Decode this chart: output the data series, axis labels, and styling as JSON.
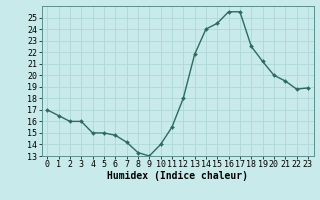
{
  "x": [
    0,
    1,
    2,
    3,
    4,
    5,
    6,
    7,
    8,
    9,
    10,
    11,
    12,
    13,
    14,
    15,
    16,
    17,
    18,
    19,
    20,
    21,
    22,
    23
  ],
  "y": [
    17.0,
    16.5,
    16.0,
    16.0,
    15.0,
    15.0,
    14.8,
    14.2,
    13.3,
    13.0,
    14.0,
    15.5,
    18.0,
    21.8,
    24.0,
    24.5,
    25.5,
    25.5,
    22.5,
    21.2,
    20.0,
    19.5,
    18.8,
    18.9
  ],
  "line_color": "#2d6b5e",
  "marker": "D",
  "marker_size": 2.0,
  "bg_color": "#c8eaea",
  "grid_color": "#b0d8d8",
  "xlabel": "Humidex (Indice chaleur)",
  "ylim": [
    13,
    26
  ],
  "xlim": [
    -0.5,
    23.5
  ],
  "yticks": [
    13,
    14,
    15,
    16,
    17,
    18,
    19,
    20,
    21,
    22,
    23,
    24,
    25
  ],
  "xticks": [
    0,
    1,
    2,
    3,
    4,
    5,
    6,
    7,
    8,
    9,
    10,
    11,
    12,
    13,
    14,
    15,
    16,
    17,
    18,
    19,
    20,
    21,
    22,
    23
  ],
  "xlabel_fontsize": 7,
  "tick_fontsize": 6,
  "linewidth": 1.0
}
